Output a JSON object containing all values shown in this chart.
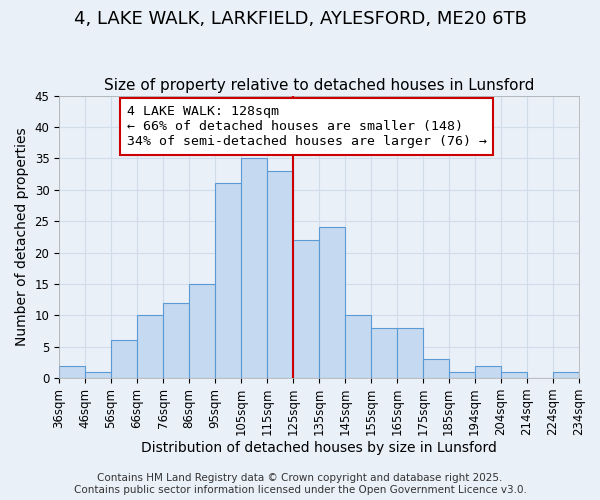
{
  "title": "4, LAKE WALK, LARKFIELD, AYLESFORD, ME20 6TB",
  "subtitle": "Size of property relative to detached houses in Lunsford",
  "xlabel": "Distribution of detached houses by size in Lunsford",
  "ylabel": "Number of detached properties",
  "bin_labels": [
    "36sqm",
    "46sqm",
    "56sqm",
    "66sqm",
    "76sqm",
    "86sqm",
    "95sqm",
    "105sqm",
    "115sqm",
    "125sqm",
    "135sqm",
    "145sqm",
    "155sqm",
    "165sqm",
    "175sqm",
    "185sqm",
    "194sqm",
    "204sqm",
    "214sqm",
    "224sqm",
    "234sqm"
  ],
  "bar_heights": [
    2,
    1,
    6,
    10,
    12,
    15,
    31,
    35,
    33,
    22,
    24,
    10,
    8,
    8,
    3,
    1,
    2,
    1,
    0,
    1
  ],
  "bar_color": "#c5d9f0",
  "bar_edge_color": "#5b9bd5",
  "reference_line_x": 9,
  "reference_line_color": "#cc0000",
  "annotation_text": "4 LAKE WALK: 128sqm\n← 66% of detached houses are smaller (148)\n34% of semi-detached houses are larger (76) →",
  "annotation_box_color": "#ffffff",
  "annotation_box_edge": "#cc0000",
  "grid_color": "#d0dce8",
  "background_color": "#eaf0f8",
  "ylim": [
    0,
    45
  ],
  "footer_text": "Contains HM Land Registry data © Crown copyright and database right 2025.\nContains public sector information licensed under the Open Government Licence v3.0.",
  "title_fontsize": 13,
  "subtitle_fontsize": 11,
  "axis_label_fontsize": 10,
  "tick_fontsize": 8.5,
  "annotation_fontsize": 9.5,
  "footer_fontsize": 7.5
}
